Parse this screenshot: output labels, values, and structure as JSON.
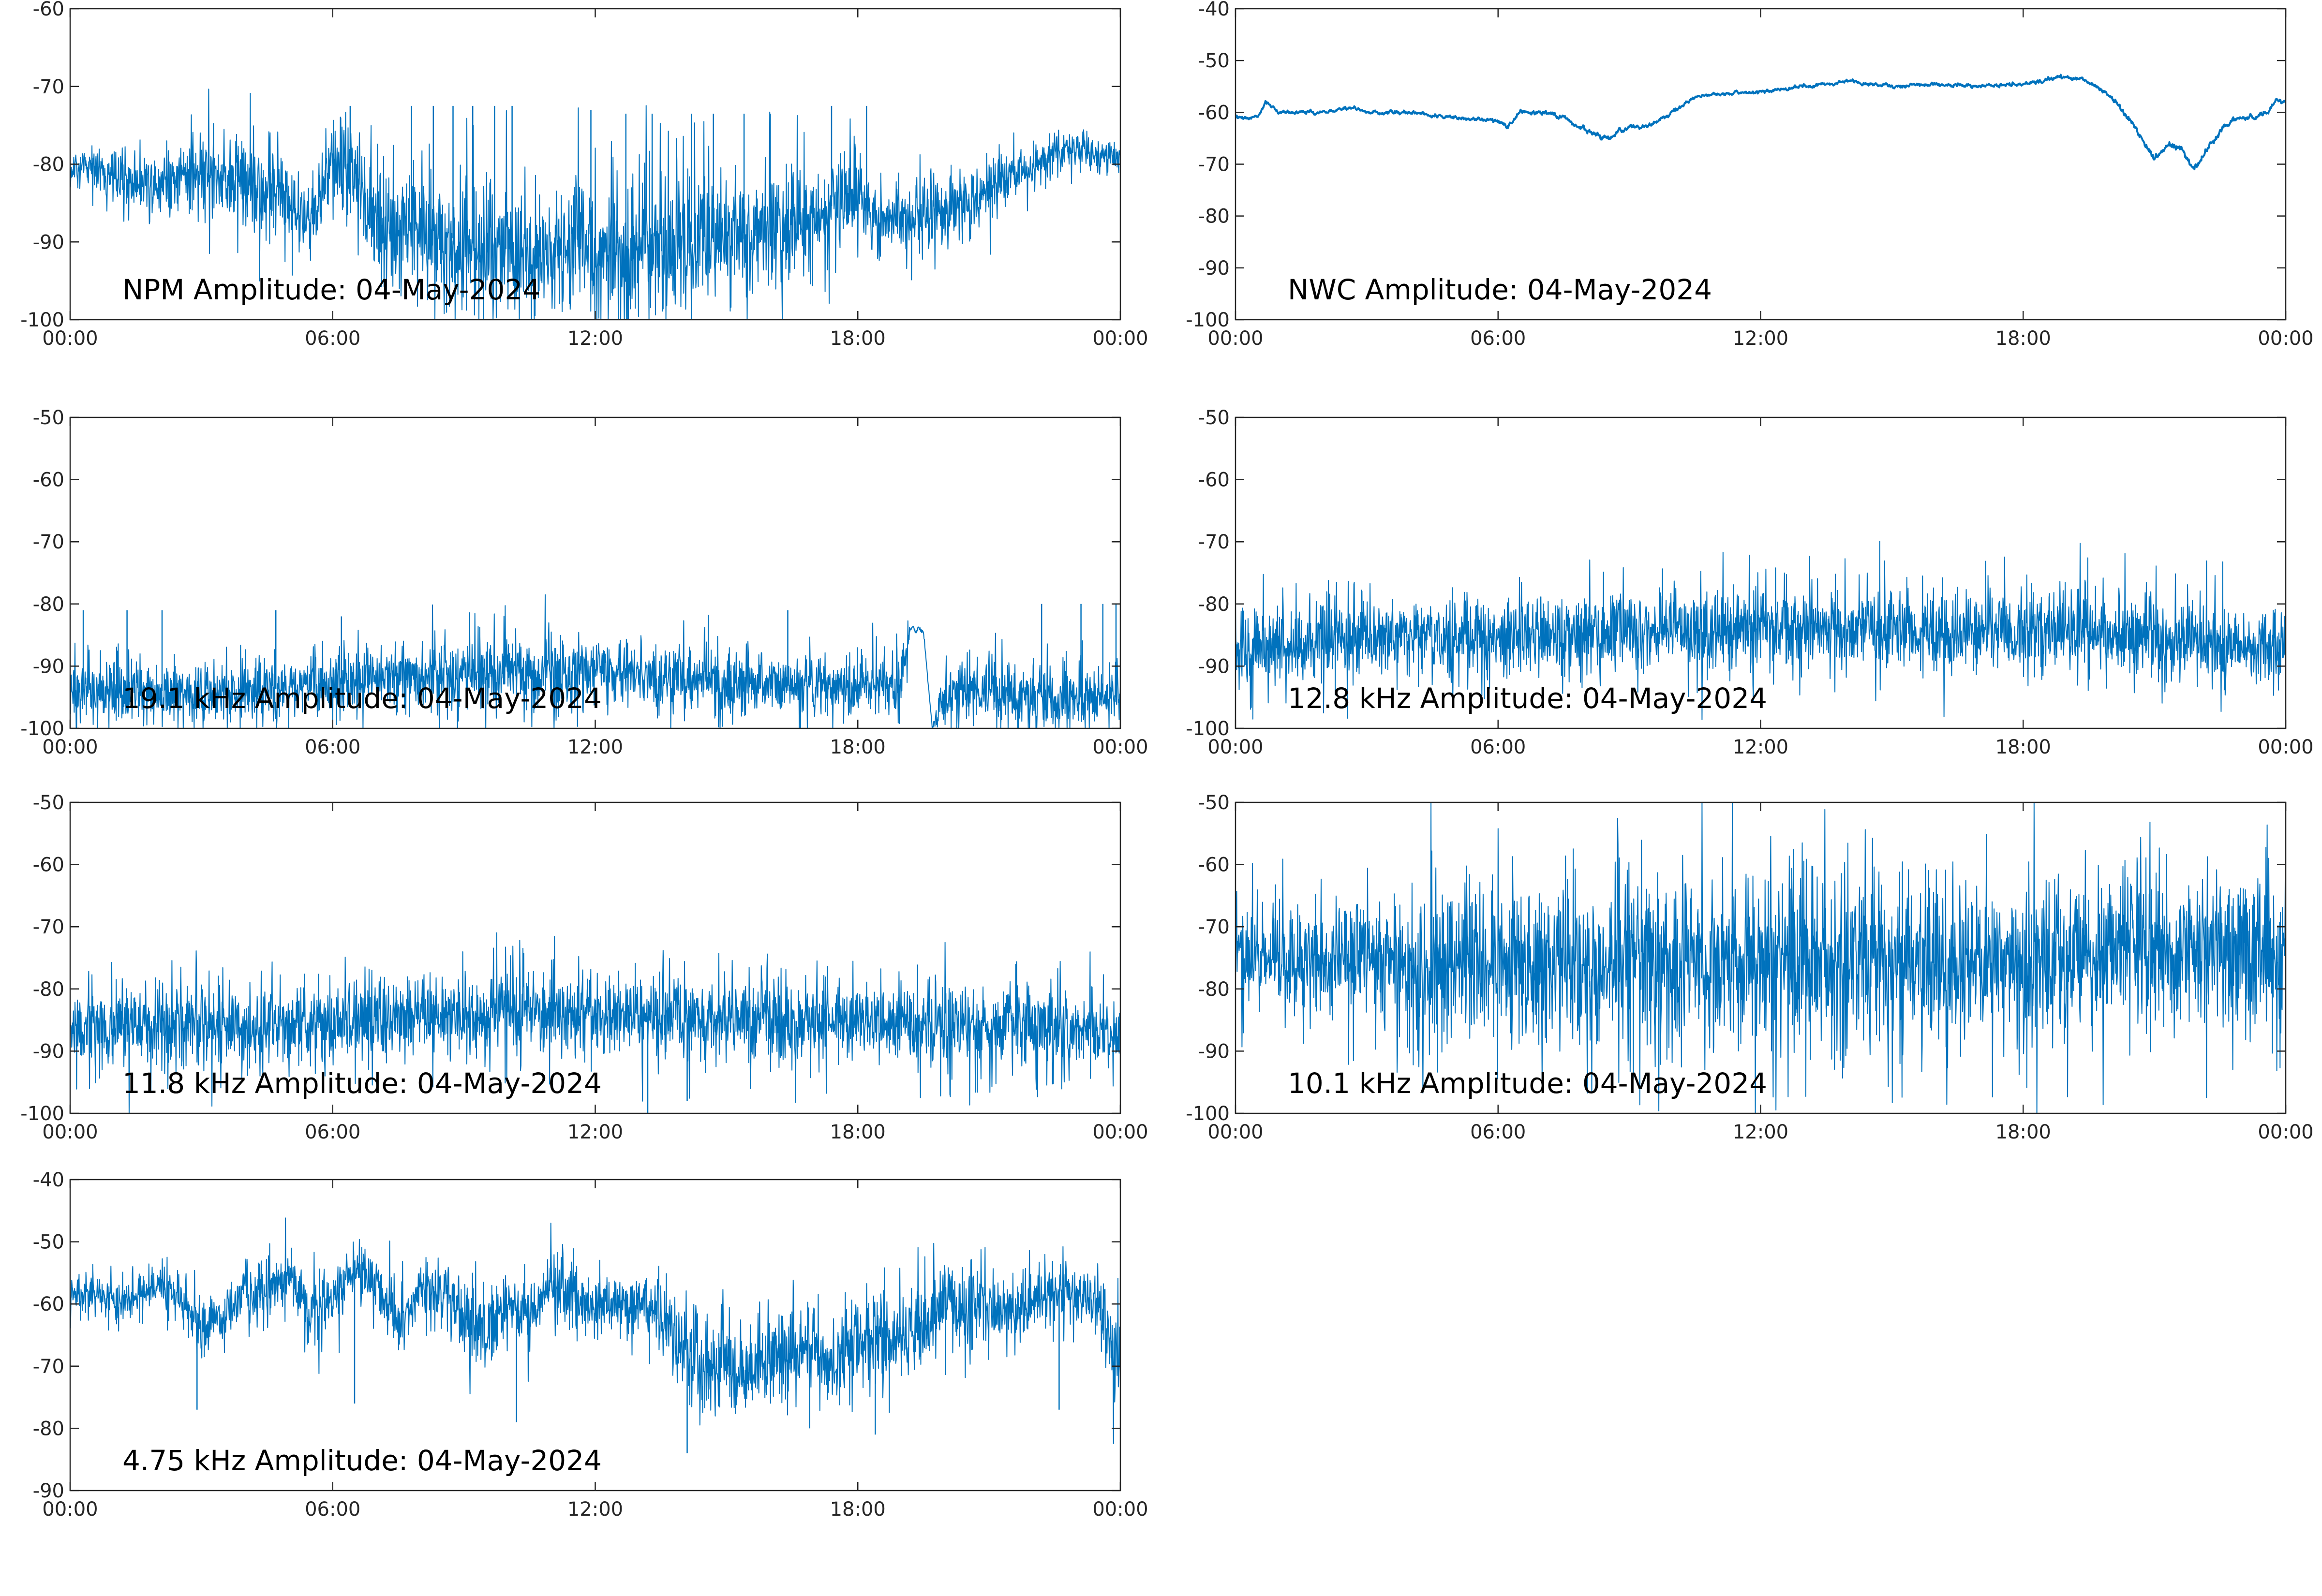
{
  "colors": {
    "series": "#0072bd",
    "axes": "#262626",
    "background": "#ffffff"
  },
  "chart_data": [
    {
      "type": "line",
      "title": "NPM Amplitude: 04-May-2024",
      "xlabel": "",
      "ylabel": "",
      "x_ticks": [
        "00:00",
        "06:00",
        "12:00",
        "18:00",
        "00:00"
      ],
      "xlim": [
        0,
        24
      ],
      "ylim": [
        -100,
        -60
      ],
      "y_ticks": [
        -60,
        -70,
        -80,
        -90,
        -100
      ],
      "grid": false,
      "series": [
        {
          "x": [
            0,
            0.5,
            1,
            2,
            3,
            4,
            5,
            5.5,
            6,
            6.5,
            7,
            8,
            9,
            10,
            11,
            12,
            13,
            14,
            15,
            16,
            16.5,
            17,
            17.5,
            18,
            18.5,
            19,
            20,
            21,
            22,
            23,
            23.5,
            24
          ],
          "values": [
            -81,
            -80,
            -82,
            -82,
            -81,
            -82,
            -84,
            -88,
            -80,
            -81,
            -88,
            -88,
            -90,
            -91,
            -91,
            -91,
            -90,
            -90,
            -90,
            -89,
            -87,
            -87,
            -85,
            -84,
            -88,
            -87,
            -86,
            -83,
            -80,
            -78,
            -79,
            -79
          ],
          "spread": [
            2,
            2,
            3,
            3,
            4,
            5,
            5,
            4,
            4,
            5,
            6,
            7,
            7,
            7,
            7,
            7,
            7,
            7,
            7,
            6,
            6,
            5,
            5,
            4,
            4,
            4,
            3,
            3,
            2,
            2,
            2,
            2
          ]
        }
      ],
      "spikes": [
        [
          6.4,
          -72.5
        ],
        [
          7.8,
          -72.5
        ],
        [
          8.3,
          -72.5
        ],
        [
          8.75,
          -72.5
        ],
        [
          9.2,
          -72.5
        ],
        [
          9.7,
          -72.5
        ],
        [
          10.1,
          -72.5
        ],
        [
          11.9,
          -73
        ],
        [
          12.7,
          -73.5
        ],
        [
          13.3,
          -73.5
        ],
        [
          14.2,
          -73.5
        ],
        [
          14.7,
          -73.5
        ],
        [
          15.4,
          -73.5
        ],
        [
          16,
          -73.5
        ],
        [
          17.4,
          -72.5
        ],
        [
          18.2,
          -72.5
        ]
      ]
    },
    {
      "type": "line",
      "title": "NWC Amplitude: 04-May-2024",
      "xlabel": "",
      "ylabel": "",
      "x_ticks": [
        "00:00",
        "06:00",
        "12:00",
        "18:00",
        "00:00"
      ],
      "xlim": [
        0,
        24
      ],
      "ylim": [
        -100,
        -40
      ],
      "y_ticks": [
        -40,
        -50,
        -60,
        -70,
        -80,
        -90,
        -100
      ],
      "grid": false,
      "series": [
        {
          "x": [
            0,
            0.5,
            0.7,
            1,
            2,
            2.7,
            3,
            4,
            5,
            6,
            6.2,
            6.5,
            7,
            7.5,
            8,
            8.5,
            9,
            9.5,
            10,
            10.5,
            11,
            12,
            13,
            14,
            15,
            16,
            17,
            18,
            19,
            19.5,
            20,
            20.5,
            21,
            21.3,
            21.6,
            21.9,
            22.2,
            22.5,
            22.8,
            23,
            23.3,
            23.6,
            23.8,
            24
          ],
          "values": [
            -61,
            -61,
            -58,
            -60,
            -60,
            -59,
            -60,
            -60,
            -61,
            -61.5,
            -63,
            -60,
            -60,
            -61,
            -63.5,
            -65,
            -63,
            -62.5,
            -60,
            -57,
            -56.5,
            -56,
            -55,
            -54,
            -55,
            -54.5,
            -55,
            -54.5,
            -53,
            -54,
            -57,
            -62,
            -69,
            -66,
            -67,
            -71,
            -67,
            -64,
            -61,
            -61,
            -61,
            -60,
            -57.5,
            -58
          ],
          "spread": [
            0.4,
            0.4,
            0.5,
            0.4,
            0.4,
            0.4,
            0.4,
            0.4,
            0.4,
            0.5,
            0.5,
            0.5,
            0.5,
            0.5,
            0.6,
            0.6,
            0.6,
            0.5,
            0.5,
            0.4,
            0.4,
            0.4,
            0.4,
            0.4,
            0.4,
            0.4,
            0.4,
            0.4,
            0.5,
            0.5,
            0.6,
            0.7,
            0.8,
            0.8,
            0.8,
            0.8,
            0.8,
            0.7,
            0.6,
            0.6,
            0.6,
            0.6,
            0.5,
            0.5
          ]
        }
      ],
      "spikes": []
    },
    {
      "type": "line",
      "title": "19.1 kHz Amplitude: 04-May-2024",
      "xlabel": "",
      "ylabel": "",
      "x_ticks": [
        "00:00",
        "06:00",
        "12:00",
        "18:00",
        "00:00"
      ],
      "xlim": [
        0,
        24
      ],
      "ylim": [
        -100,
        -50
      ],
      "y_ticks": [
        -50,
        -60,
        -70,
        -80,
        -90,
        -100
      ],
      "grid": false,
      "series": [
        {
          "x": [
            0,
            2,
            4,
            6,
            8,
            10,
            12,
            14,
            16,
            18,
            19,
            19.2,
            19.5,
            19.7,
            20,
            22,
            24
          ],
          "values": [
            -94,
            -94,
            -94,
            -93,
            -92,
            -91,
            -91,
            -92,
            -93,
            -93,
            -93,
            -84,
            -84,
            -100,
            -94,
            -95,
            -95
          ],
          "spread": [
            4,
            4,
            4,
            4,
            4.5,
            4.5,
            4.5,
            4.5,
            4,
            4,
            4,
            1,
            1,
            0.5,
            4,
            4,
            4
          ]
        }
      ],
      "spikes": [
        [
          0.3,
          -81
        ],
        [
          1.3,
          -81
        ],
        [
          2.1,
          -81
        ],
        [
          4.7,
          -81
        ],
        [
          6.2,
          -82
        ],
        [
          16.4,
          -81
        ],
        [
          22.2,
          -80
        ],
        [
          23.1,
          -80
        ],
        [
          23.6,
          -80
        ],
        [
          23.9,
          -80
        ]
      ]
    },
    {
      "type": "line",
      "title": "12.8 kHz Amplitude: 04-May-2024",
      "xlabel": "",
      "ylabel": "",
      "x_ticks": [
        "00:00",
        "06:00",
        "12:00",
        "18:00",
        "00:00"
      ],
      "xlim": [
        0,
        24
      ],
      "ylim": [
        -100,
        -50
      ],
      "y_ticks": [
        -50,
        -60,
        -70,
        -80,
        -90,
        -100
      ],
      "grid": false,
      "series": [
        {
          "x": [
            0,
            3,
            6,
            9,
            12,
            15,
            18,
            21,
            24
          ],
          "values": [
            -86.5,
            -86,
            -85.5,
            -84.5,
            -84,
            -84,
            -84.5,
            -85.5,
            -86.5
          ],
          "spread": [
            5,
            5,
            5,
            5,
            5,
            5,
            5,
            5,
            5
          ]
        }
      ],
      "spikes": []
    },
    {
      "type": "line",
      "title": "11.8 kHz Amplitude: 04-May-2024",
      "xlabel": "",
      "ylabel": "",
      "x_ticks": [
        "00:00",
        "06:00",
        "12:00",
        "18:00",
        "00:00"
      ],
      "xlim": [
        0,
        24
      ],
      "ylim": [
        -100,
        -50
      ],
      "y_ticks": [
        -50,
        -60,
        -70,
        -80,
        -90,
        -100
      ],
      "grid": false,
      "series": [
        {
          "x": [
            0,
            3,
            6,
            9,
            10,
            12,
            15,
            18,
            21,
            24
          ],
          "values": [
            -86.5,
            -86,
            -85.5,
            -84,
            -83.5,
            -84,
            -85,
            -85.5,
            -86,
            -87
          ],
          "spread": [
            5,
            5,
            5,
            5,
            5,
            5,
            5,
            5,
            5,
            5
          ]
        }
      ],
      "spikes": [
        [
          13.2,
          -100
        ],
        [
          14.1,
          -98
        ]
      ]
    },
    {
      "type": "line",
      "title": "10.1 kHz Amplitude: 04-May-2024",
      "xlabel": "",
      "ylabel": "",
      "x_ticks": [
        "00:00",
        "06:00",
        "12:00",
        "18:00",
        "00:00"
      ],
      "xlim": [
        0,
        24
      ],
      "ylim": [
        -100,
        -50
      ],
      "y_ticks": [
        -50,
        -60,
        -70,
        -80,
        -90,
        -100
      ],
      "grid": false,
      "series": [
        {
          "x": [
            0,
            2,
            4,
            6,
            8,
            10,
            12,
            14,
            16,
            18,
            20,
            22,
            24
          ],
          "values": [
            -75,
            -75,
            -76,
            -76,
            -76,
            -76,
            -76,
            -76,
            -76,
            -76,
            -75,
            -74,
            -74
          ],
          "spread": [
            6,
            7,
            9,
            10,
            11,
            11,
            11,
            11,
            11,
            10,
            10,
            10,
            9
          ]
        }
      ],
      "spikes": []
    },
    {
      "type": "line",
      "title": "4.75 kHz Amplitude: 04-May-2024",
      "xlabel": "",
      "ylabel": "",
      "x_ticks": [
        "00:00",
        "06:00",
        "12:00",
        "18:00",
        "00:00"
      ],
      "xlim": [
        0,
        24
      ],
      "ylim": [
        -90,
        -40
      ],
      "y_ticks": [
        -40,
        -50,
        -60,
        -70,
        -80,
        -90
      ],
      "grid": false,
      "series": [
        {
          "x": [
            0,
            0.5,
            1,
            1.5,
            2,
            2.5,
            3,
            3.5,
            4,
            4.5,
            5,
            5.5,
            6,
            6.5,
            7,
            7.5,
            8,
            8.5,
            9,
            9.5,
            10,
            10.5,
            11,
            11.5,
            12,
            12.5,
            13,
            13.5,
            14,
            14.5,
            15,
            15.5,
            16,
            16.5,
            17,
            17.5,
            18,
            18.5,
            19,
            19.5,
            20,
            20.5,
            21,
            21.5,
            22,
            22.5,
            23,
            23.5,
            24
          ],
          "values": [
            -59,
            -58,
            -60,
            -59,
            -57,
            -59,
            -64,
            -62,
            -58,
            -58,
            -55,
            -63,
            -59,
            -56,
            -57,
            -63,
            -58,
            -57,
            -62,
            -65,
            -60,
            -62,
            -57,
            -59,
            -60,
            -60,
            -60,
            -62,
            -67,
            -71,
            -69,
            -71,
            -70,
            -68,
            -66,
            -70,
            -67,
            -64,
            -66,
            -63,
            -59,
            -62,
            -60,
            -62,
            -60,
            -58,
            -59,
            -60,
            -70
          ],
          "spread": [
            2,
            2,
            3,
            2.5,
            2.5,
            3,
            4,
            4,
            3.5,
            3.5,
            3.5,
            5,
            4,
            3.5,
            3.5,
            5,
            4,
            3.5,
            5,
            6,
            4,
            4,
            3.5,
            3.5,
            3.5,
            3.5,
            3.5,
            4,
            6,
            6,
            6,
            6,
            6,
            6,
            6,
            6,
            6,
            6,
            6,
            6,
            5,
            6,
            5,
            5,
            4.5,
            4,
            4,
            4,
            6
          ]
        }
      ],
      "spikes": [
        [
          2.9,
          -77
        ],
        [
          6.5,
          -76
        ],
        [
          10.2,
          -79
        ],
        [
          14.1,
          -84
        ],
        [
          16.9,
          -80
        ],
        [
          18.4,
          -81
        ],
        [
          22.6,
          -77
        ]
      ]
    }
  ]
}
